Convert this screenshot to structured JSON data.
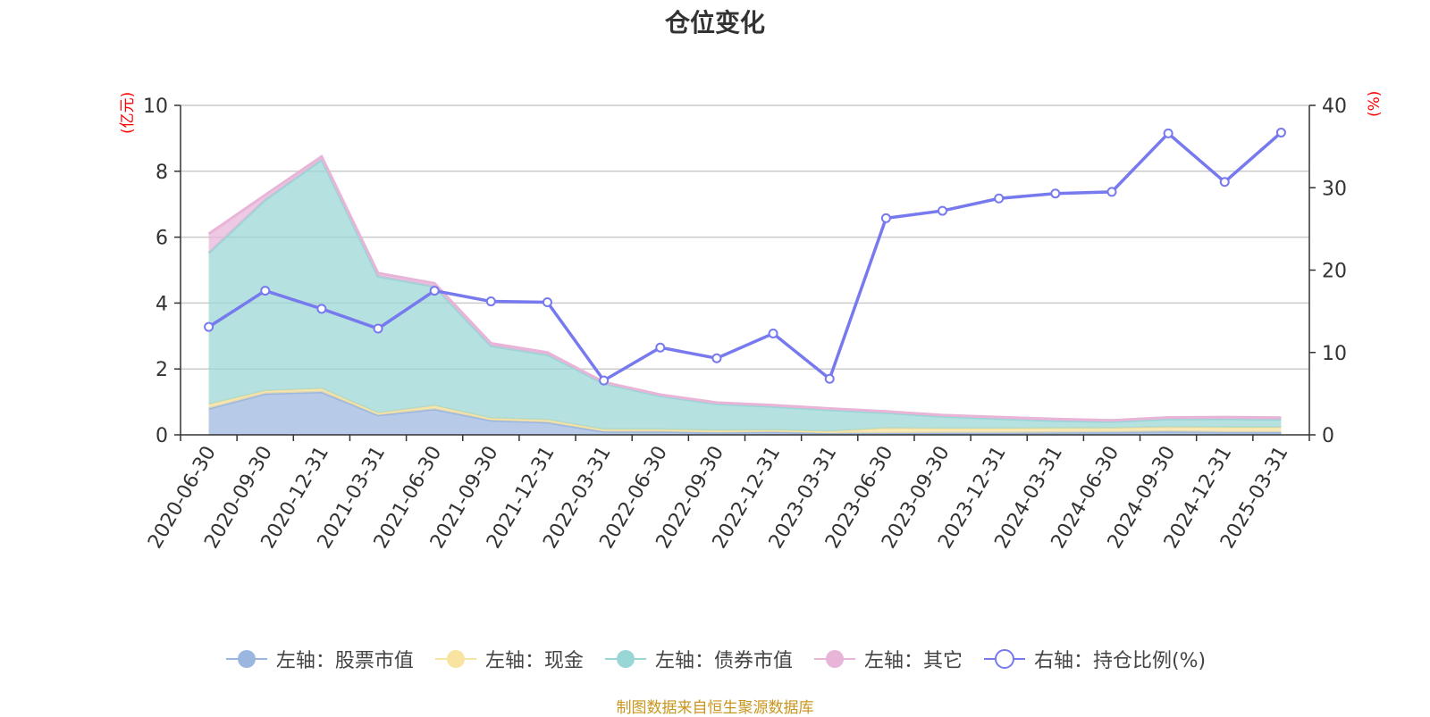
{
  "chart_data": {
    "type": "area",
    "title": "仓位变化",
    "y_left_unit": "(亿元)",
    "y_right_unit": "(%)",
    "ylim_left": [
      0,
      10
    ],
    "ylim_right": [
      0,
      40
    ],
    "yticks_left": [
      "0",
      "2",
      "4",
      "6",
      "8",
      "10"
    ],
    "yticks_right": [
      "0",
      "10",
      "20",
      "30",
      "40"
    ],
    "categories": [
      "2020-06-30",
      "2020-09-30",
      "2020-12-31",
      "2021-03-31",
      "2021-06-30",
      "2021-09-30",
      "2021-12-31",
      "2022-03-31",
      "2022-06-30",
      "2022-09-30",
      "2022-12-31",
      "2023-03-31",
      "2023-06-30",
      "2023-09-30",
      "2023-12-31",
      "2024-03-31",
      "2024-06-30",
      "2024-09-30",
      "2024-12-31",
      "2025-03-31"
    ],
    "series": [
      {
        "name": "左轴：股票市值",
        "axis": "left",
        "stack": true,
        "color": "#9bb7e0",
        "values": [
          0.8,
          1.25,
          1.3,
          0.6,
          0.78,
          0.44,
          0.38,
          0.1,
          0.1,
          0.07,
          0.09,
          0.05,
          0.05,
          0.06,
          0.06,
          0.07,
          0.08,
          0.1,
          0.08,
          0.08
        ]
      },
      {
        "name": "左轴：现金",
        "axis": "left",
        "stack": true,
        "color": "#f9e3a1",
        "values": [
          0.12,
          0.08,
          0.1,
          0.06,
          0.1,
          0.06,
          0.07,
          0.06,
          0.06,
          0.06,
          0.05,
          0.05,
          0.15,
          0.13,
          0.13,
          0.13,
          0.12,
          0.13,
          0.14,
          0.14
        ]
      },
      {
        "name": "左轴：债券市值",
        "axis": "left",
        "stack": true,
        "color": "#99d6d6",
        "values": [
          4.6,
          5.8,
          6.95,
          4.15,
          3.62,
          2.2,
          1.98,
          1.4,
          1.02,
          0.81,
          0.72,
          0.66,
          0.47,
          0.37,
          0.3,
          0.23,
          0.2,
          0.25,
          0.26,
          0.25
        ]
      },
      {
        "name": "左轴：其它",
        "axis": "left",
        "stack": true,
        "color": "#e8b4d8",
        "values": [
          0.58,
          0.15,
          0.1,
          0.1,
          0.1,
          0.08,
          0.07,
          0.04,
          0.04,
          0.04,
          0.04,
          0.04,
          0.04,
          0.04,
          0.05,
          0.05,
          0.04,
          0.05,
          0.06,
          0.05
        ]
      },
      {
        "name": "右轴：持仓比例(%)",
        "axis": "right",
        "stack": false,
        "color": "#7779ee",
        "values": [
          13.1,
          17.5,
          15.3,
          12.9,
          17.5,
          16.2,
          16.1,
          6.6,
          10.6,
          9.3,
          12.3,
          6.8,
          26.3,
          27.2,
          28.7,
          29.3,
          29.5,
          36.6,
          30.7,
          36.7
        ]
      }
    ]
  },
  "legend": [
    {
      "label": "左轴：股票市值",
      "color": "#9bb7e0",
      "marker": "filled"
    },
    {
      "label": "左轴：现金",
      "color": "#f9e3a1",
      "marker": "filled"
    },
    {
      "label": "左轴：债券市值",
      "color": "#99d6d6",
      "marker": "filled"
    },
    {
      "label": "左轴：其它",
      "color": "#e8b4d8",
      "marker": "filled"
    },
    {
      "label": "右轴：持仓比例(%)",
      "color": "#7779ee",
      "marker": "hollow"
    }
  ],
  "source_note": "制图数据来自恒生聚源数据库"
}
